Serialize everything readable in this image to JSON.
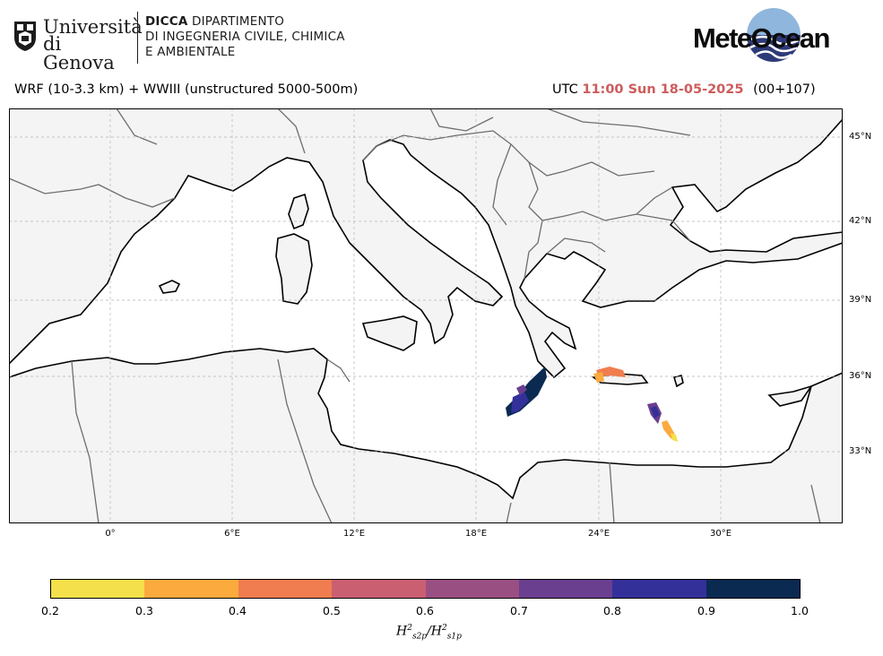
{
  "header": {
    "university_line1": "Università",
    "university_line2": "di Genova",
    "dept_bold": "DICCA",
    "dept_line1_rest": " DIPARTIMENTO",
    "dept_line2": "DI INGEGNERIA CIVILE, CHIMICA",
    "dept_line3": "E AMBIENTALE",
    "brand": "MeteOcean"
  },
  "subheader": {
    "model": "WRF (10-3.3 km) + WWIII (unstructured 5000-500m)",
    "utc_prefix": "UTC",
    "time": "11:00 Sun 18-05-2025",
    "forecast_step": "(00+107)"
  },
  "map": {
    "lat_labels": [
      "45°N",
      "42°N",
      "39°N",
      "36°N",
      "33°N"
    ],
    "lon_labels": [
      "0°",
      "6°E",
      "12°E",
      "18°E",
      "24°E",
      "30°E"
    ],
    "colors": {
      "land": "#f4f4f4",
      "sea": "#ffffff",
      "coast": "#000000",
      "border": "#6e6e6e",
      "grid": "#b4b4b4"
    }
  },
  "colorbar": {
    "ticks": [
      "0.2",
      "0.3",
      "0.4",
      "0.5",
      "0.6",
      "0.7",
      "0.8",
      "0.9",
      "1.0"
    ],
    "colors": [
      "#f3e04a",
      "#fbaa3e",
      "#f07d4f",
      "#cb5f72",
      "#9a4f82",
      "#6a3f8f",
      "#34309a",
      "#0a2a52"
    ],
    "label_main": "H",
    "label_num_sub": "s2p",
    "label_den_sub": "s1p",
    "label_sup": "2"
  }
}
